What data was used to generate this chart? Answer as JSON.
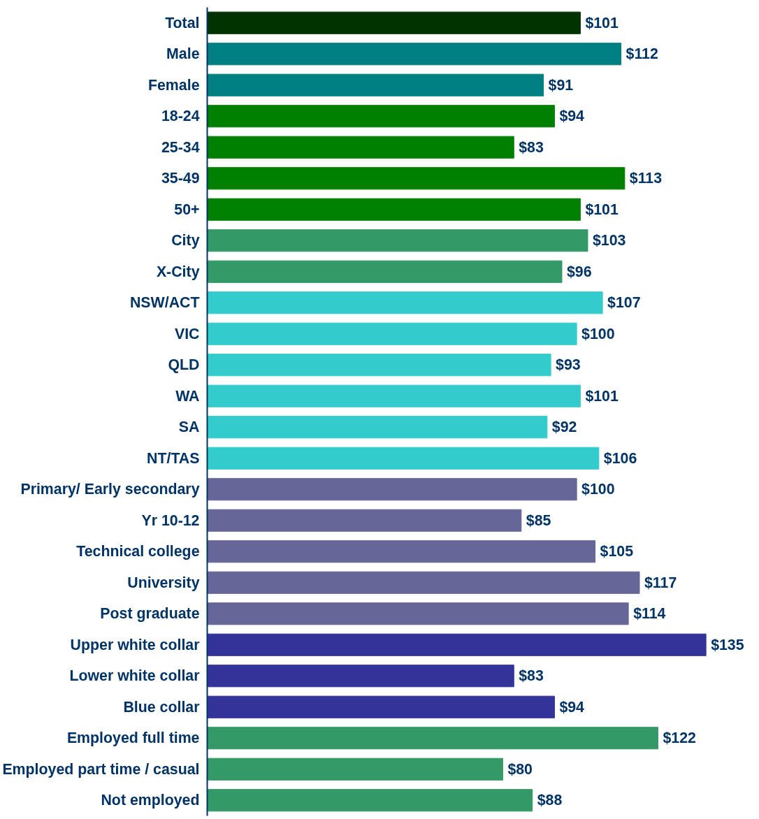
{
  "chart_data": {
    "type": "bar",
    "categories": [
      "Total",
      "Male",
      "Female",
      "18-24",
      "25-34",
      "35-49",
      "50+",
      "City",
      "X-City",
      "NSW/ACT",
      "VIC",
      "QLD",
      "WA",
      "SA",
      "NT/TAS",
      "Primary/ Early secondary",
      "Yr 10-12",
      "Technical college",
      "University",
      "Post graduate",
      "Upper white collar",
      "Lower white collar",
      "Blue collar",
      "Employed full time",
      "Employed part time / casual",
      "Not employed"
    ],
    "values": [
      101,
      112,
      91,
      94,
      83,
      113,
      101,
      103,
      96,
      107,
      100,
      93,
      101,
      92,
      106,
      100,
      85,
      105,
      117,
      114,
      135,
      83,
      94,
      122,
      80,
      88
    ],
    "colors": [
      "#003300",
      "#008080",
      "#008080",
      "#008000",
      "#008000",
      "#008000",
      "#008000",
      "#339966",
      "#339966",
      "#33cccc",
      "#33cccc",
      "#33cccc",
      "#33cccc",
      "#33cccc",
      "#33cccc",
      "#666699",
      "#666699",
      "#666699",
      "#666699",
      "#666699",
      "#333399",
      "#333399",
      "#333399",
      "#339966",
      "#339966",
      "#339966"
    ],
    "value_labels": [
      "$101",
      "$112",
      "$91",
      "$94",
      "$83",
      "$113",
      "$101",
      "$103",
      "$96",
      "$107",
      "$100",
      "$93",
      "$101",
      "$92",
      "$106",
      "$100",
      "$85",
      "$105",
      "$117",
      "$114",
      "$135",
      "$83",
      "$94",
      "$122",
      "$80",
      "$88"
    ],
    "orientation": "horizontal"
  }
}
